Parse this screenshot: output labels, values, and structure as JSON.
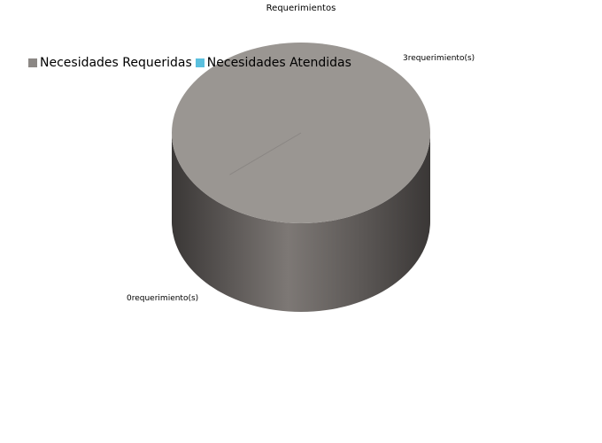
{
  "chart_data": {
    "type": "pie",
    "title": "Requerimientos",
    "categories": [
      "Necesidades Requeridas",
      "Necesidades Atendidas"
    ],
    "values": [
      3,
      0
    ],
    "data_labels": [
      "3requerimiento(s)",
      "0requerimiento(s)"
    ],
    "colors": {
      "top": "#9a9692",
      "side_dark": "#3a3736",
      "side_light": "#7d7875",
      "legend": [
        "#8c8885",
        "#5bc0de"
      ]
    },
    "legend_placement": "top-left",
    "three_d": true
  }
}
